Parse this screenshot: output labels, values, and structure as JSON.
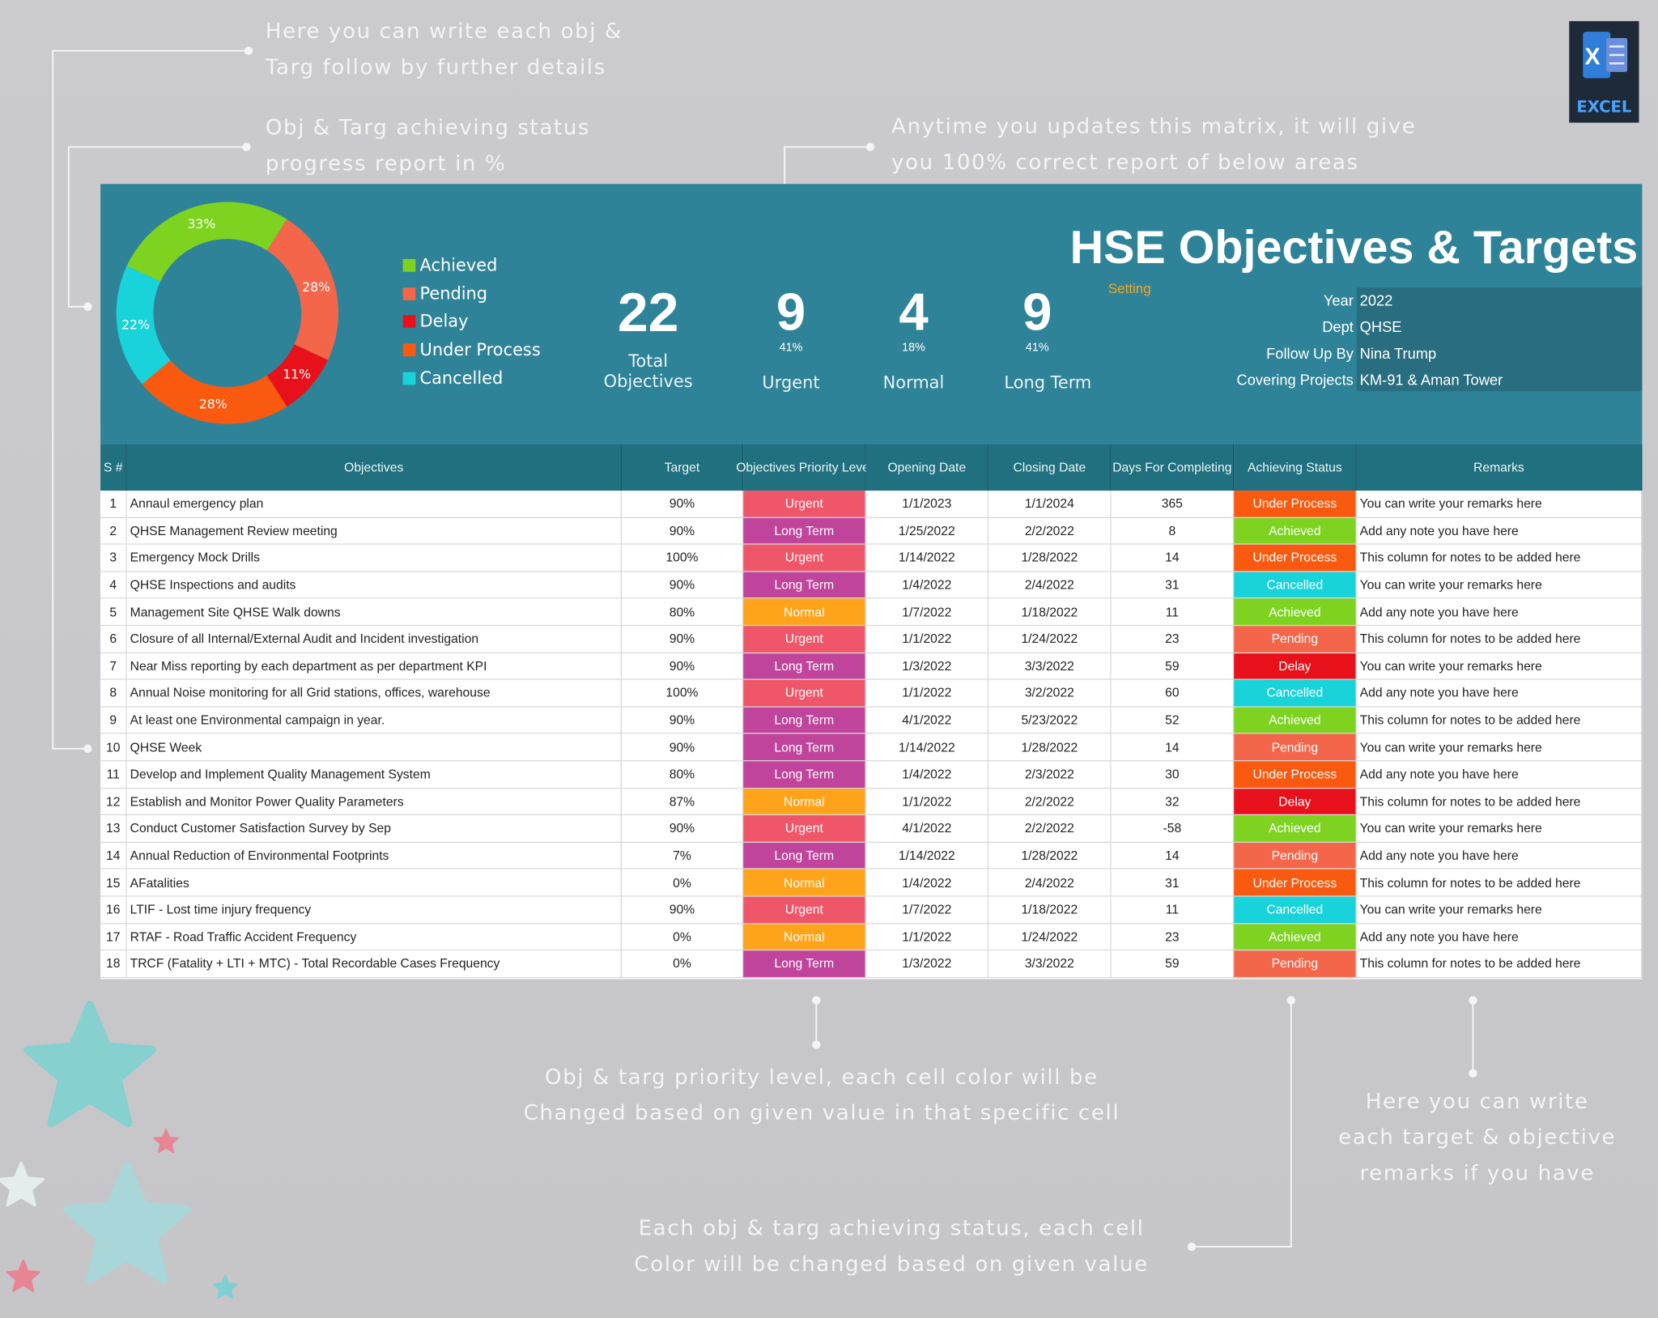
{
  "annotations": [
    [
      "Here you can write each obj &",
      "Targ follow by further details"
    ],
    [
      "Obj & Targ achieving status",
      "progress report in %"
    ],
    [
      "Anytime you updates this matrix, it will give",
      "you 100% correct report of below areas"
    ],
    [
      "Obj & targ priority level, each cell color will be",
      "Changed based on given value in that specific cell"
    ],
    [
      "Here you can write",
      "each target & objective",
      "remarks if you have"
    ],
    [
      "Each obj & targ achieving status, each cell",
      "Color will be changed based on given value"
    ]
  ],
  "logo": {
    "icon": "X",
    "label": "EXCEL"
  },
  "chart_data": {
    "type": "pie",
    "donut": true,
    "categories": [
      "Achieved",
      "Pending",
      "Delay",
      "Under Process",
      "Cancelled"
    ],
    "values": [
      33,
      28,
      11,
      28,
      22
    ],
    "value_labels": [
      "33%",
      "28%",
      "11%",
      "28%",
      "22%"
    ],
    "colors": [
      "#7ed321",
      "#f4664a",
      "#e8101a",
      "#fa5a0f",
      "#19d3da"
    ]
  },
  "summary": {
    "total": {
      "value": "22",
      "label": "Total Objectives"
    },
    "stats": [
      {
        "value": "9",
        "percent": "41%",
        "label": "Urgent"
      },
      {
        "value": "4",
        "percent": "18%",
        "label": "Normal"
      },
      {
        "value": "9",
        "percent": "41%",
        "label": "Long Term"
      }
    ]
  },
  "header": {
    "title": "HSE Objectives & Targets",
    "subtitle": "Setting",
    "info": [
      [
        "Year",
        "2022"
      ],
      [
        "Dept",
        "QHSE"
      ],
      [
        "Follow Up By",
        "Nina Trump"
      ],
      [
        "Covering Projects",
        "KM-91 & Aman Tower"
      ]
    ]
  },
  "priority_colors": {
    "Urgent": "#f0566a",
    "Long Term": "#c0449b",
    "Normal": "#ffa31a"
  },
  "table": {
    "columns": [
      "S #",
      "Objectives",
      "Target",
      "Objectives Priority Level",
      "Opening Date",
      "Closing Date",
      "Days For Completing",
      "Achieving Status",
      "Remarks"
    ],
    "rows": [
      [
        1,
        "Annaul emergency plan",
        "90%",
        "Urgent",
        "1/1/2023",
        "1/1/2024",
        365,
        "Under Process",
        "You can write your remarks here"
      ],
      [
        2,
        "QHSE Management Review meeting",
        "90%",
        "Long Term",
        "1/25/2022",
        "2/2/2022",
        8,
        "Achieved",
        "Add any note you have here"
      ],
      [
        3,
        "Emergency Mock Drills",
        "100%",
        "Urgent",
        "1/14/2022",
        "1/28/2022",
        14,
        "Under Process",
        "This column for notes to be added here"
      ],
      [
        4,
        "QHSE Inspections and audits",
        "90%",
        "Long Term",
        "1/4/2022",
        "2/4/2022",
        31,
        "Cancelled",
        "You can write your remarks here"
      ],
      [
        5,
        "Management Site QHSE Walk downs",
        "80%",
        "Normal",
        "1/7/2022",
        "1/18/2022",
        11,
        "Achieved",
        "Add any note you have here"
      ],
      [
        6,
        "Closure of all Internal/External Audit and Incident investigation",
        "90%",
        "Urgent",
        "1/1/2022",
        "1/24/2022",
        23,
        "Pending",
        "This column for notes to be added here"
      ],
      [
        7,
        "Near Miss reporting by each department as per department KPI",
        "90%",
        "Long Term",
        "1/3/2022",
        "3/3/2022",
        59,
        "Delay",
        "You can write your remarks here"
      ],
      [
        8,
        "Annual Noise monitoring for all Grid stations, offices, warehouse",
        "100%",
        "Urgent",
        "1/1/2022",
        "3/2/2022",
        60,
        "Cancelled",
        "Add any note you have here"
      ],
      [
        9,
        "At least one Environmental campaign in year.",
        "90%",
        "Long Term",
        "4/1/2022",
        "5/23/2022",
        52,
        "Achieved",
        "This column for notes to be added here"
      ],
      [
        10,
        "QHSE Week",
        "90%",
        "Long Term",
        "1/14/2022",
        "1/28/2022",
        14,
        "Pending",
        "You can write your remarks here"
      ],
      [
        11,
        "Develop and Implement Quality Management System",
        "80%",
        "Long Term",
        "1/4/2022",
        "2/3/2022",
        30,
        "Under Process",
        "Add any note you have here"
      ],
      [
        12,
        "Establish and Monitor Power Quality Parameters",
        "87%",
        "Normal",
        "1/1/2022",
        "2/2/2022",
        32,
        "Delay",
        "This column for notes to be added here"
      ],
      [
        13,
        "Conduct Customer Satisfaction Survey by Sep",
        "90%",
        "Urgent",
        "4/1/2022",
        "2/2/2022",
        -58,
        "Achieved",
        "You can write your remarks here"
      ],
      [
        14,
        "Annual Reduction of Environmental Footprints",
        "7%",
        "Long Term",
        "1/14/2022",
        "1/28/2022",
        14,
        "Pending",
        "Add any note you have here"
      ],
      [
        15,
        "AFatalities",
        "0%",
        "Normal",
        "1/4/2022",
        "2/4/2022",
        31,
        "Under Process",
        "This column for notes to be added here"
      ],
      [
        16,
        "LTIF - Lost time injury frequency",
        "90%",
        "Urgent",
        "1/7/2022",
        "1/18/2022",
        11,
        "Cancelled",
        "You can write your remarks here"
      ],
      [
        17,
        "RTAF - Road Traffic Accident Frequency",
        "0%",
        "Normal",
        "1/1/2022",
        "1/24/2022",
        23,
        "Achieved",
        "Add any note you have here"
      ],
      [
        18,
        "TRCF (Fatality + LTI + MTC) - Total Recordable Cases Frequency",
        "0%",
        "Long Term",
        "1/3/2022",
        "3/3/2022",
        59,
        "Pending",
        "This column for notes to be added here"
      ]
    ]
  }
}
